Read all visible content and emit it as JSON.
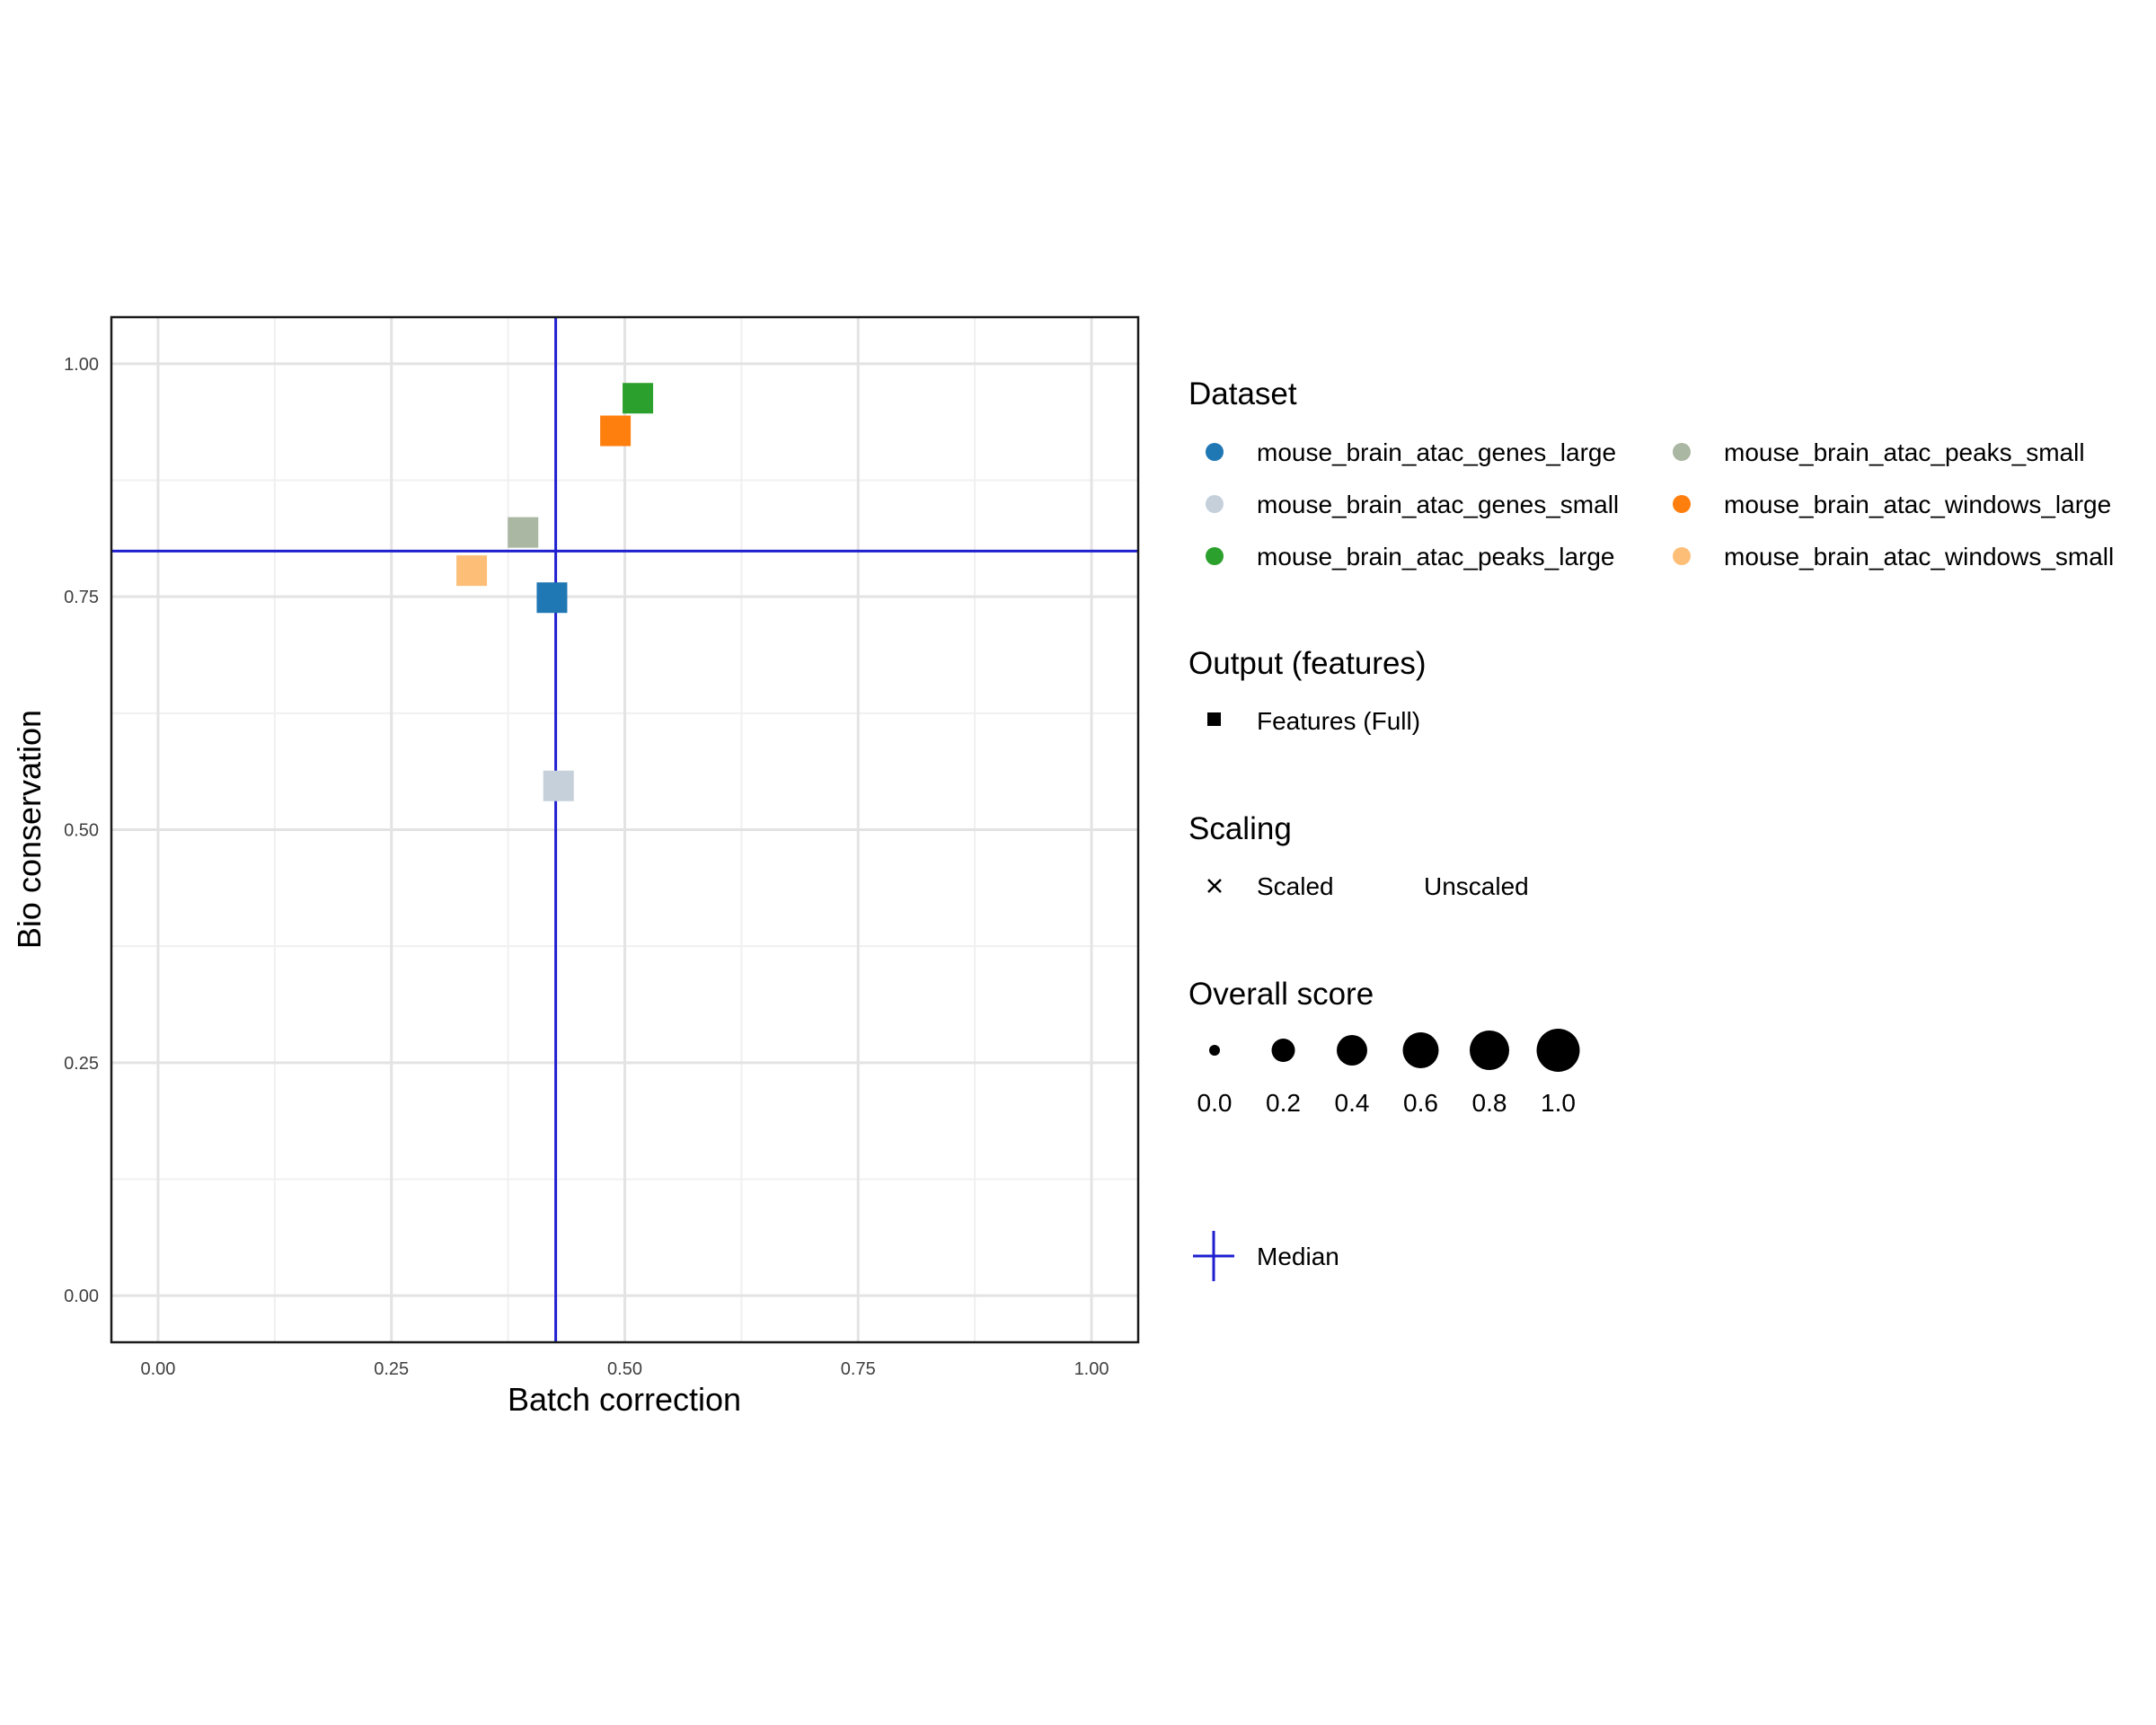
{
  "chart_data": {
    "type": "scatter",
    "xlabel": "Batch correction",
    "ylabel": "Bio conservation",
    "xlim": [
      -0.05,
      1.05
    ],
    "ylim": [
      -0.05,
      1.05
    ],
    "xticks": [
      "0.00",
      "0.25",
      "0.50",
      "0.75",
      "1.00"
    ],
    "yticks": [
      "0.00",
      "0.25",
      "0.50",
      "0.75",
      "1.00"
    ],
    "median": {
      "x": 0.426,
      "y": 0.799,
      "label": "Median",
      "color": "#1f1fd0"
    },
    "series": [
      {
        "name": "mouse_brain_atac_genes_large",
        "color": "#1f77b4",
        "x": 0.422,
        "y": 0.749
      },
      {
        "name": "mouse_brain_atac_genes_small",
        "color": "#c5d0da",
        "x": 0.429,
        "y": 0.547
      },
      {
        "name": "mouse_brain_atac_peaks_large",
        "color": "#2ca02c",
        "x": 0.514,
        "y": 0.963
      },
      {
        "name": "mouse_brain_atac_peaks_small",
        "color": "#aab7a2",
        "x": 0.391,
        "y": 0.819
      },
      {
        "name": "mouse_brain_atac_windows_large",
        "color": "#ff7f0e",
        "x": 0.49,
        "y": 0.928
      },
      {
        "name": "mouse_brain_atac_windows_small",
        "color": "#fdbf78",
        "x": 0.336,
        "y": 0.778
      }
    ],
    "legend": {
      "dataset_title": "Dataset",
      "output_title": "Output (features)",
      "output_items": [
        "Features (Full)"
      ],
      "scaling_title": "Scaling",
      "scaling_items": [
        "Scaled",
        "Unscaled"
      ],
      "size_title": "Overall score",
      "size_values": [
        "0.0",
        "0.2",
        "0.4",
        "0.6",
        "0.8",
        "1.0"
      ],
      "median_label": "Median"
    }
  }
}
